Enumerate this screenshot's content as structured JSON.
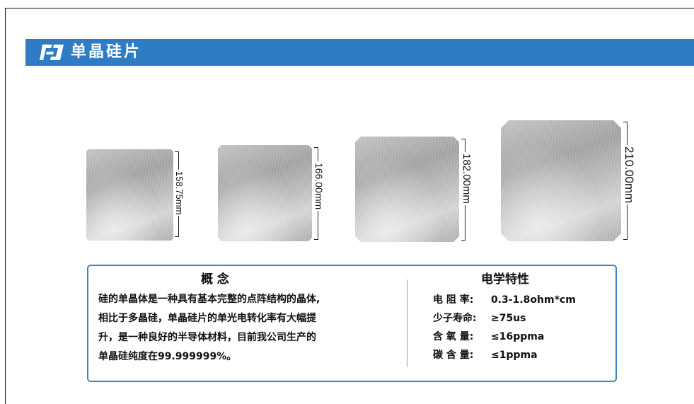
{
  "banner": {
    "title": "单晶硅片",
    "color": "#2e7cc4",
    "logo_icon": "brand-logo-icon"
  },
  "wafers": [
    {
      "size_label": "158.75mm"
    },
    {
      "size_label": "166.00mm"
    },
    {
      "size_label": "182.00mm"
    },
    {
      "size_label": "210.00mm"
    }
  ],
  "info": {
    "concept": {
      "heading": "概 念",
      "lines": [
        "硅的单晶体是一种具有基本完整的点阵结构的晶体,",
        "相比于多晶硅，单晶硅片的单光电转化率有大幅提",
        "升，是一种良好的半导体材料，目前我公司生产的",
        "单晶硅纯度在99.999999%。"
      ]
    },
    "electrical": {
      "heading": "电学特性",
      "properties": [
        {
          "name": "电 阻 率:",
          "value": "0.3-1.8ohm*cm"
        },
        {
          "name": "少子寿命:",
          "value": "≥75us"
        },
        {
          "name": "含 氧 量:",
          "value": "≤16ppma"
        },
        {
          "name": "碳 含 量:",
          "value": "≤1ppma"
        }
      ]
    }
  }
}
